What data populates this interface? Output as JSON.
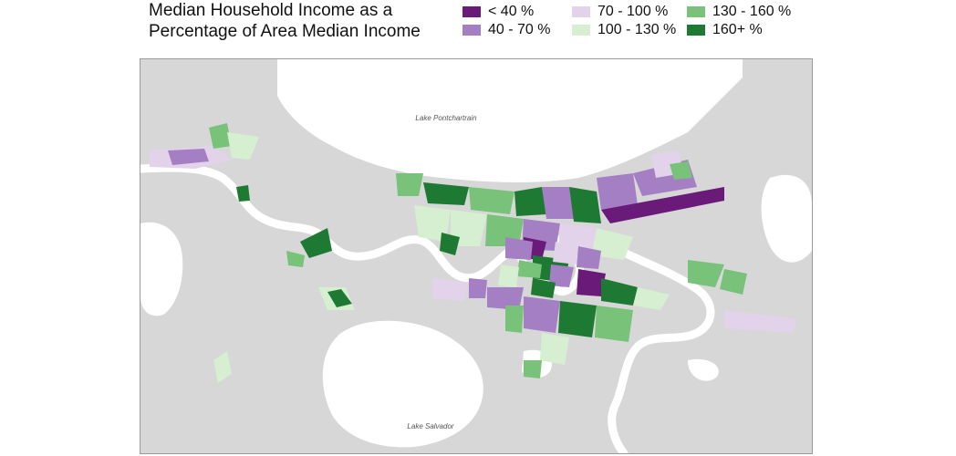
{
  "title": "Median Household Income as a Percentage of Area Median Income",
  "legend": [
    {
      "label": "< 40 %",
      "color": "#6a1b7a"
    },
    {
      "label": "40 - 70 %",
      "color": "#a57fc3"
    },
    {
      "label": "70 - 100 %",
      "color": "#e3d3ea"
    },
    {
      "label": "100 - 130 %",
      "color": "#d5efd0"
    },
    {
      "label": "130 - 160 %",
      "color": "#79c27a"
    },
    {
      "label": "160+ %",
      "color": "#1e7a32"
    }
  ],
  "map": {
    "lake_labels": [
      "Lake Pontchartrain",
      "Lake Salvador"
    ],
    "land_color": "#d7d7d7",
    "water_color": "#ffffff",
    "river_color": "#ffffff"
  }
}
